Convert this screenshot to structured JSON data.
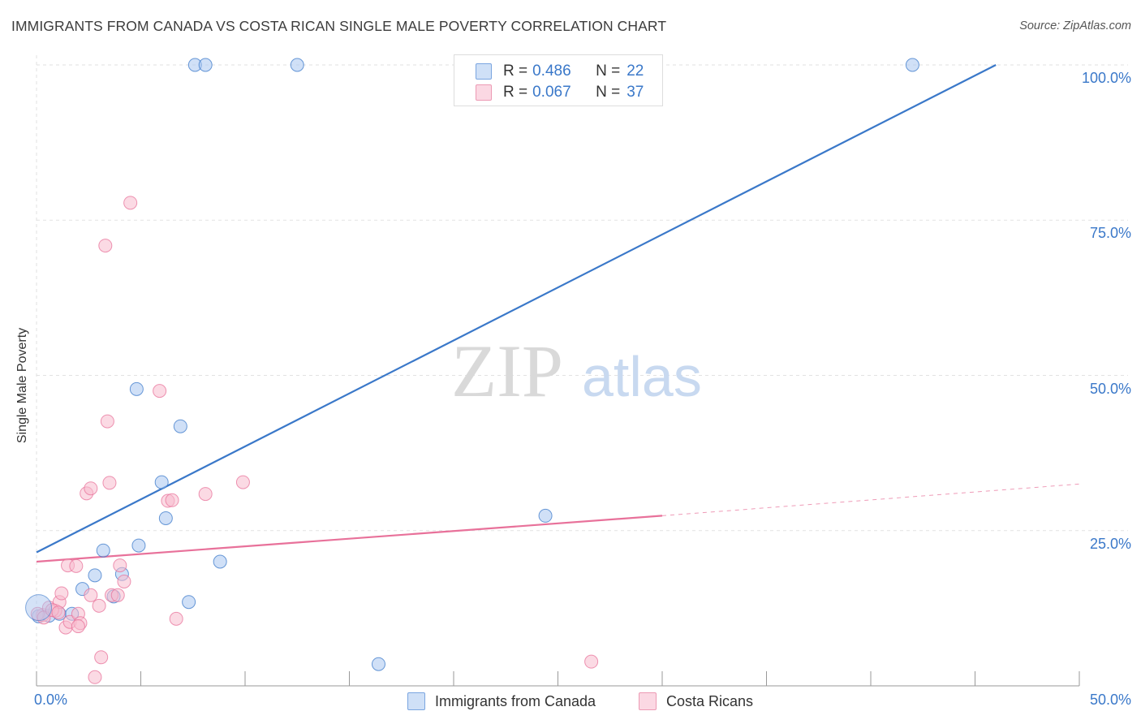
{
  "header": {
    "title": "IMMIGRANTS FROM CANADA VS COSTA RICAN SINGLE MALE POVERTY CORRELATION CHART",
    "source": "Source: ZipAtlas.com"
  },
  "watermark": {
    "zip": "ZIP",
    "atlas": "atlas"
  },
  "stats_box": {
    "rows": [
      {
        "r_label": "R =",
        "r_value": "0.486",
        "n_label": "N =",
        "n_value": "22",
        "color": "#a9c6f0"
      },
      {
        "r_label": "R =",
        "r_value": "0.067",
        "n_label": "N =",
        "n_value": "37",
        "color": "#f7bccd"
      }
    ]
  },
  "chart_data": {
    "type": "scatter",
    "title": "IMMIGRANTS FROM CANADA VS COSTA RICAN SINGLE MALE POVERTY CORRELATION CHART",
    "xlabel": "",
    "ylabel": "Single Male Poverty",
    "xlim": [
      0,
      50
    ],
    "ylim": [
      0,
      100
    ],
    "x_tick_labels": [
      "0.0%",
      "50.0%"
    ],
    "y_tick_labels": [
      "100.0%",
      "75.0%",
      "50.0%",
      "25.0%"
    ],
    "y_tick_values": [
      100,
      75,
      50,
      25
    ],
    "grid": true,
    "legend_position": "bottom-center",
    "series": [
      {
        "name": "Immigrants from Canada",
        "color": "#3a78c9",
        "fill": "#a9c6f0",
        "points": [
          [
            0.1,
            11.2
          ],
          [
            0.6,
            11.3
          ],
          [
            1.1,
            11.6
          ],
          [
            1.7,
            11.6
          ],
          [
            2.2,
            15.6
          ],
          [
            2.8,
            17.8
          ],
          [
            3.2,
            21.8
          ],
          [
            3.7,
            14.4
          ],
          [
            4.1,
            18.0
          ],
          [
            4.9,
            22.6
          ],
          [
            4.8,
            47.8
          ],
          [
            6.0,
            32.8
          ],
          [
            6.2,
            27.0
          ],
          [
            6.9,
            41.8
          ],
          [
            7.3,
            13.5
          ],
          [
            7.6,
            100.0
          ],
          [
            8.1,
            100.0
          ],
          [
            8.8,
            20.0
          ],
          [
            12.5,
            100.0
          ],
          [
            16.4,
            3.5
          ],
          [
            24.4,
            27.4
          ],
          [
            42.0,
            100.0
          ]
        ],
        "trend": {
          "x": [
            0,
            46
          ],
          "y": [
            21.5,
            100
          ]
        }
      },
      {
        "name": "Costa Ricans",
        "color": "#e8719a",
        "fill": "#f7bccd",
        "points": [
          [
            0.3,
            11.4
          ],
          [
            0.6,
            12.6
          ],
          [
            0.9,
            12.1
          ],
          [
            1.1,
            13.5
          ],
          [
            1.4,
            9.4
          ],
          [
            1.2,
            14.9
          ],
          [
            1.6,
            10.3
          ],
          [
            1.5,
            19.4
          ],
          [
            1.9,
            19.3
          ],
          [
            2.0,
            11.6
          ],
          [
            2.1,
            10.1
          ],
          [
            2.0,
            9.6
          ],
          [
            2.4,
            31.0
          ],
          [
            2.6,
            31.8
          ],
          [
            2.6,
            14.6
          ],
          [
            3.0,
            12.9
          ],
          [
            3.1,
            4.6
          ],
          [
            2.8,
            1.4
          ],
          [
            3.3,
            70.9
          ],
          [
            3.4,
            42.6
          ],
          [
            3.5,
            32.7
          ],
          [
            3.6,
            14.6
          ],
          [
            3.9,
            14.6
          ],
          [
            4.0,
            19.4
          ],
          [
            4.2,
            16.8
          ],
          [
            4.5,
            77.8
          ],
          [
            5.9,
            47.5
          ],
          [
            6.3,
            29.8
          ],
          [
            6.5,
            29.9
          ],
          [
            6.7,
            10.8
          ],
          [
            8.1,
            30.9
          ],
          [
            9.9,
            32.8
          ],
          [
            26.6,
            3.9
          ],
          [
            0.05,
            11.6
          ],
          [
            0.35,
            11.0
          ],
          [
            0.75,
            12.2
          ],
          [
            1.05,
            11.8
          ]
        ],
        "trend": {
          "x": [
            0,
            30
          ],
          "y": [
            20.0,
            27.4
          ]
        },
        "trend_extension": {
          "x": [
            30,
            50
          ],
          "y": [
            27.4,
            32.5
          ]
        }
      }
    ]
  },
  "legend": {
    "items": [
      {
        "label": "Immigrants from Canada",
        "color": "#a9c6f0",
        "border": "#7aa5e0"
      },
      {
        "label": "Costa Ricans",
        "color": "#f7bccd",
        "border": "#ec9ab4"
      }
    ]
  }
}
